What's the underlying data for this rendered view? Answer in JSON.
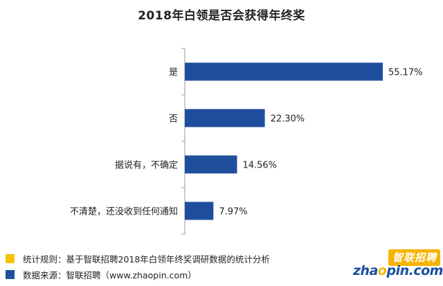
{
  "chart_data": {
    "type": "bar",
    "orientation": "horizontal",
    "title": "2018年白领是否会获得年终奖",
    "categories": [
      "是",
      "否",
      "据说有，不确定",
      "不清楚，还没收到任何通知"
    ],
    "values": [
      55.17,
      22.3,
      14.56,
      7.97
    ],
    "value_labels": [
      "55.17%",
      "22.30%",
      "14.56%",
      "7.97%"
    ],
    "xlim": [
      0,
      60
    ],
    "grid": false,
    "bar_color": "#1f4e9c"
  },
  "footnotes": [
    {
      "text": "统计规则：基于智联招聘2018年白领年终奖调研数据的统计分析",
      "color": "#f5c400"
    },
    {
      "text": "数据来源：智联招聘（www.zhaopin.com）",
      "color": "#1f4e9c"
    }
  ],
  "logo": {
    "cn": "智联招聘",
    "en_prefix": "zha",
    "en_mid": "o",
    "en_suffix": "pin.com"
  }
}
